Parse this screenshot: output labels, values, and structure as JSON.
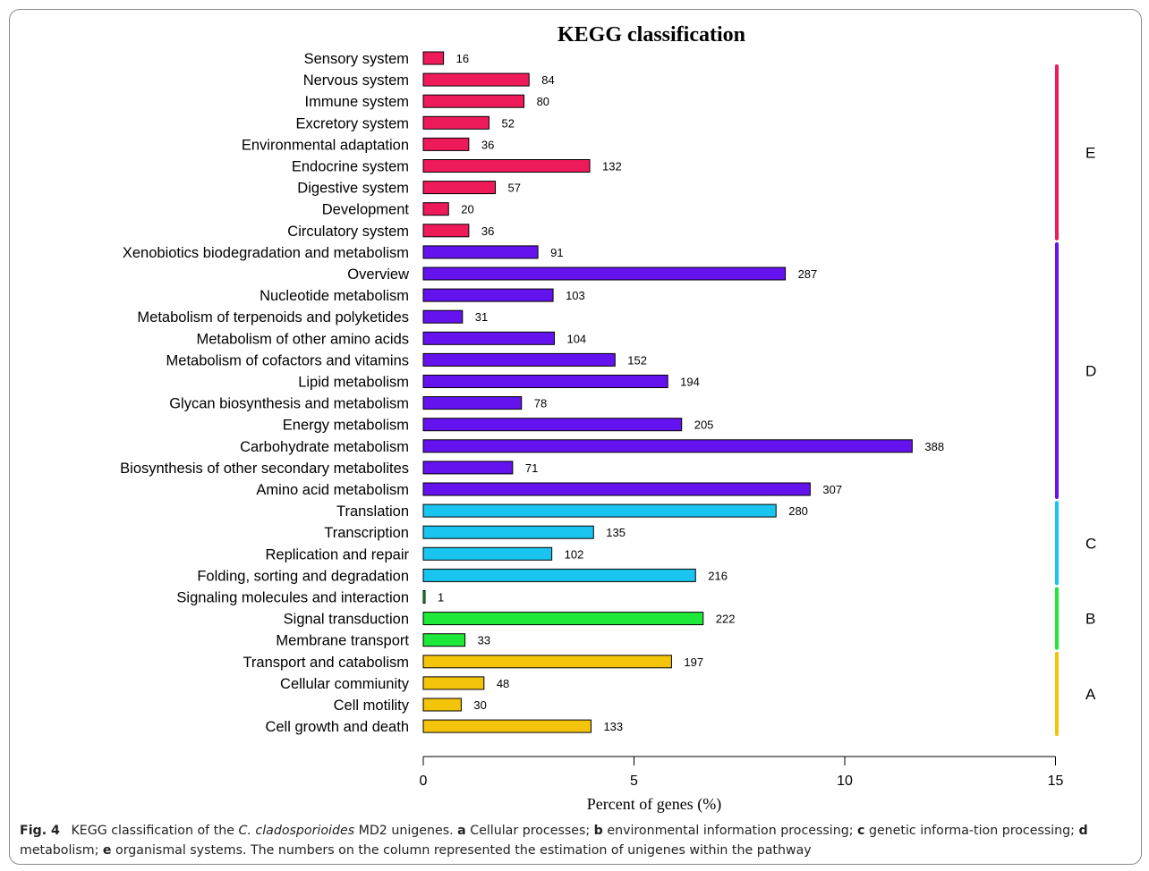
{
  "chart_data": {
    "type": "bar",
    "orientation": "horizontal",
    "title": "KEGG classification",
    "xlabel": "Percent of genes (%)",
    "xlim": [
      0,
      15
    ],
    "xticks": [
      0,
      5,
      10,
      15
    ],
    "xtick_labels": [
      "0",
      "5",
      "10",
      "15"
    ],
    "grid": false,
    "group_colors": {
      "E": "#ee1a5a",
      "D": "#6412ee",
      "C": "#19c5ef",
      "B": "#1ee83a",
      "A": "#f4c40a"
    },
    "categories": [
      {
        "label": "Sensory system",
        "count": "16",
        "percent": 0.48,
        "group": "E"
      },
      {
        "label": "Nervous system",
        "count": "84",
        "percent": 2.51,
        "group": "E"
      },
      {
        "label": "Immune system",
        "count": "80",
        "percent": 2.39,
        "group": "E"
      },
      {
        "label": "Excretory system",
        "count": "52",
        "percent": 1.56,
        "group": "E"
      },
      {
        "label": "Environmental adaptation",
        "count": "36",
        "percent": 1.08,
        "group": "E"
      },
      {
        "label": "Endocrine system",
        "count": "132",
        "percent": 3.95,
        "group": "E"
      },
      {
        "label": "Digestive system",
        "count": "57",
        "percent": 1.71,
        "group": "E"
      },
      {
        "label": "Development",
        "count": "20",
        "percent": 0.6,
        "group": "E"
      },
      {
        "label": "Circulatory system",
        "count": "36",
        "percent": 1.08,
        "group": "E"
      },
      {
        "label": "Xenobiotics biodegradation and metabolism",
        "count": "91",
        "percent": 2.72,
        "group": "D"
      },
      {
        "label": "Overview",
        "count": "287",
        "percent": 8.59,
        "group": "D"
      },
      {
        "label": "Nucleotide metabolism",
        "count": "103",
        "percent": 3.08,
        "group": "D"
      },
      {
        "label": "Metabolism of terpenoids and polyketides",
        "count": "31",
        "percent": 0.93,
        "group": "D"
      },
      {
        "label": "Metabolism of other amino acids",
        "count": "104",
        "percent": 3.11,
        "group": "D"
      },
      {
        "label": "Metabolism of cofactors and vitamins",
        "count": "152",
        "percent": 4.55,
        "group": "D"
      },
      {
        "label": "Lipid metabolism",
        "count": "194",
        "percent": 5.8,
        "group": "D"
      },
      {
        "label": "Glycan biosynthesis and metabolism",
        "count": "78",
        "percent": 2.33,
        "group": "D"
      },
      {
        "label": "Energy metabolism",
        "count": "205",
        "percent": 6.13,
        "group": "D"
      },
      {
        "label": "Carbohydrate metabolism",
        "count": "388",
        "percent": 11.6,
        "group": "D"
      },
      {
        "label": "Biosynthesis of other secondary metabolites",
        "count": "71",
        "percent": 2.12,
        "group": "D"
      },
      {
        "label": "Amino acid metabolism",
        "count": "307",
        "percent": 9.18,
        "group": "D"
      },
      {
        "label": "Translation",
        "count": "280",
        "percent": 8.37,
        "group": "C"
      },
      {
        "label": "Transcription",
        "count": "135",
        "percent": 4.04,
        "group": "C"
      },
      {
        "label": "Replication and repair",
        "count": "102",
        "percent": 3.05,
        "group": "C"
      },
      {
        "label": "Folding, sorting and degradation",
        "count": "216",
        "percent": 6.46,
        "group": "C"
      },
      {
        "label": "Signaling molecules and interaction",
        "count": "1",
        "percent": 0.03,
        "group": "B"
      },
      {
        "label": "Signal transduction",
        "count": "222",
        "percent": 6.64,
        "group": "B"
      },
      {
        "label": "Membrane transport",
        "count": "33",
        "percent": 0.99,
        "group": "B"
      },
      {
        "label": "Transport and catabolism",
        "count": "197",
        "percent": 5.89,
        "group": "A"
      },
      {
        "label": "Cellular commiunity",
        "count": "48",
        "percent": 1.44,
        "group": "A"
      },
      {
        "label": "Cell motility",
        "count": "30",
        "percent": 0.9,
        "group": "A"
      },
      {
        "label": "Cell growth and death",
        "count": "133",
        "percent": 3.98,
        "group": "A"
      }
    ],
    "groups": [
      {
        "label": "E",
        "first": 0,
        "last": 8
      },
      {
        "label": "D",
        "first": 9,
        "last": 20
      },
      {
        "label": "C",
        "first": 21,
        "last": 24
      },
      {
        "label": "B",
        "first": 25,
        "last": 27
      },
      {
        "label": "A",
        "first": 28,
        "last": 31
      }
    ]
  },
  "caption": {
    "fig_label": "Fig. 4",
    "text_1": "KEGG classification of the",
    "species": "C. cladosporioides",
    "text_2": "MD2 unigenes.",
    "a_key": "a",
    "a_text": "Cellular processes;",
    "b_key": "b",
    "b_text": "environmental information processing;",
    "c_key": "c",
    "c_text": "genetic informa-tion processing;",
    "d_key": "d",
    "d_text": "metabolism;",
    "e_key": "e",
    "e_text": "organismal systems. The numbers on the column represented the estimation of unigenes within the pathway"
  }
}
